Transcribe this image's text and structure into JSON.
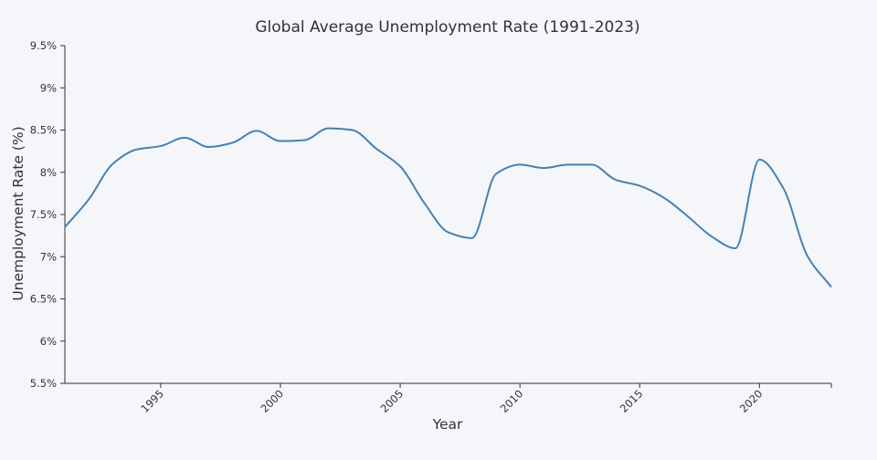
{
  "colors": {
    "background": "#f4f6fa",
    "line": "#4682b4",
    "axis": "#333333"
  },
  "chart_data": {
    "type": "line",
    "title": "Global Average Unemployment Rate (1991-2023)",
    "xlabel": "Year",
    "ylabel": "Unemployment Rate (%)",
    "xlim": [
      1991,
      2023
    ],
    "ylim": [
      5.5,
      9.5
    ],
    "grid": false,
    "legend": "none",
    "x_ticks": [
      {
        "value": 1995,
        "label": "1995"
      },
      {
        "value": 2000,
        "label": "2000"
      },
      {
        "value": 2005,
        "label": "2005"
      },
      {
        "value": 2010,
        "label": "2010"
      },
      {
        "value": 2015,
        "label": "2015"
      },
      {
        "value": 2020,
        "label": "2020"
      }
    ],
    "y_ticks": [
      {
        "value": 5.5,
        "label": "5.5%"
      },
      {
        "value": 6,
        "label": "6%"
      },
      {
        "value": 6.5,
        "label": "6.5%"
      },
      {
        "value": 7,
        "label": "7%"
      },
      {
        "value": 7.5,
        "label": "7.5%"
      },
      {
        "value": 8,
        "label": "8%"
      },
      {
        "value": 8.5,
        "label": "8.5%"
      },
      {
        "value": 9,
        "label": "9%"
      },
      {
        "value": 9.5,
        "label": "9.5%"
      }
    ],
    "x": [
      1991,
      1992,
      1993,
      1994,
      1995,
      1996,
      1997,
      1998,
      1999,
      2000,
      2001,
      2002,
      2003,
      2004,
      2005,
      2006,
      2007,
      2008,
      2009,
      2010,
      2011,
      2012,
      2013,
      2014,
      2015,
      2016,
      2017,
      2018,
      2019,
      2020,
      2021,
      2022,
      2023
    ],
    "series": [
      {
        "values": [
          7.35,
          7.68,
          8.1,
          8.27,
          8.31,
          8.41,
          8.3,
          8.35,
          8.49,
          8.37,
          8.38,
          8.52,
          8.5,
          8.28,
          8.07,
          7.64,
          7.29,
          7.22,
          7.98,
          8.09,
          8.05,
          8.09,
          8.09,
          7.91,
          7.84,
          7.7,
          7.48,
          7.24,
          7.1,
          8.15,
          7.81,
          7.01,
          6.64
        ]
      }
    ]
  }
}
